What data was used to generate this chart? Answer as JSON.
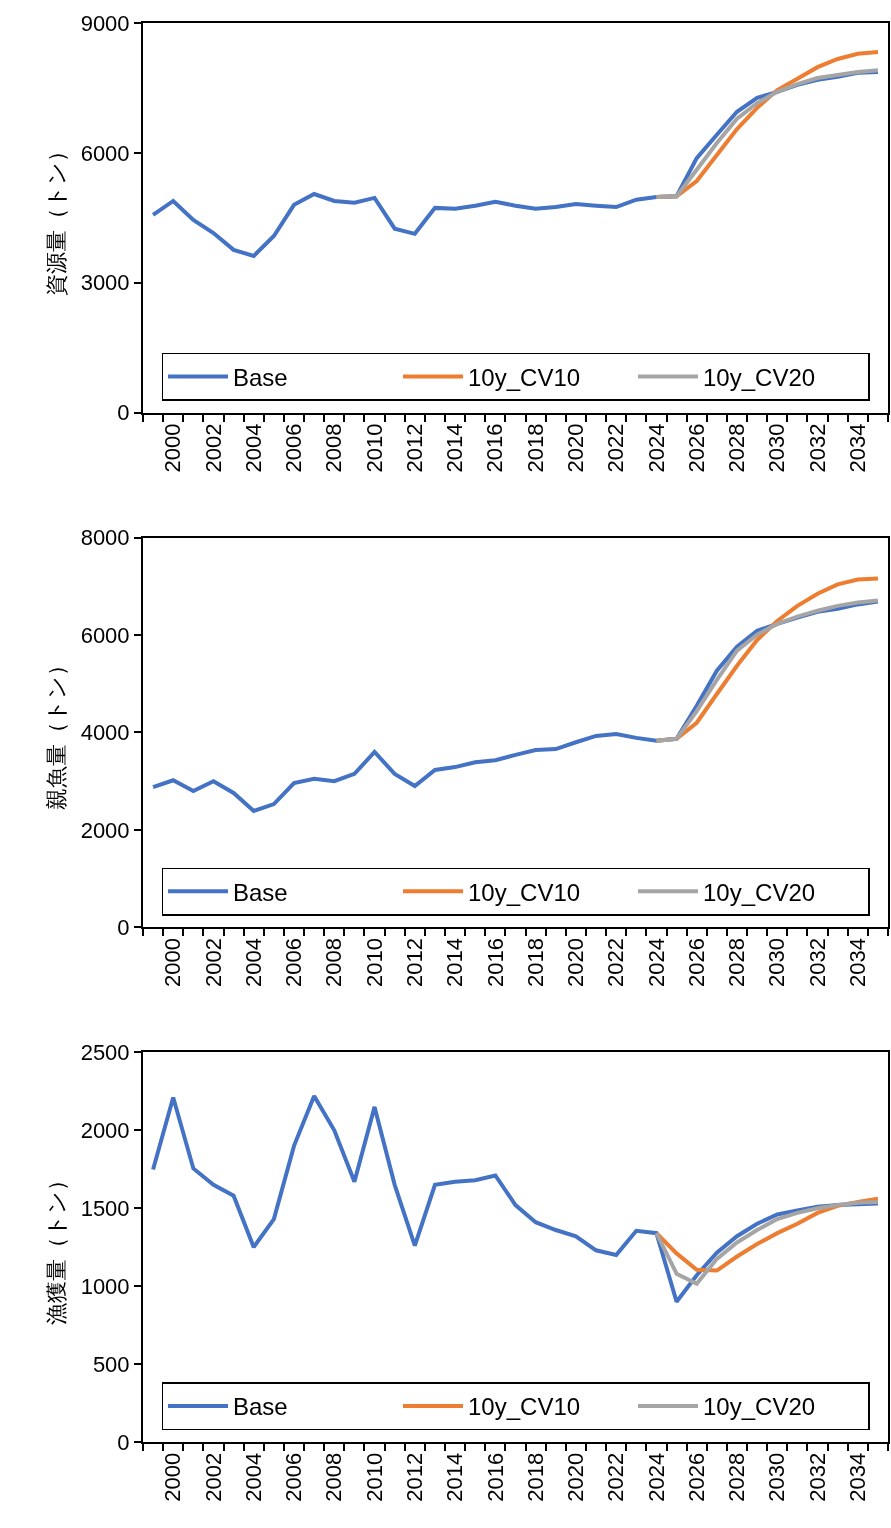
{
  "chart_data": [
    {
      "type": "line",
      "ylabel": "資源量（トン）",
      "ylim": [
        0,
        9000
      ],
      "yticks": [
        0,
        3000,
        6000,
        9000
      ],
      "legend": "bottom",
      "line_style": "solid",
      "categories": [
        null,
        "2000",
        null,
        "2002",
        null,
        "2004",
        null,
        "2006",
        null,
        "2008",
        null,
        "2010",
        null,
        "2012",
        null,
        "2014",
        null,
        "2016",
        null,
        "2018",
        null,
        "2020",
        null,
        "2022",
        null,
        "2024",
        null,
        "2026",
        null,
        "2028",
        null,
        "2030",
        null,
        "2032",
        null,
        "2034",
        null
      ],
      "series": [
        {
          "name": "Base",
          "color": "#4472c4",
          "values": [
            4570,
            4890,
            4450,
            4150,
            3760,
            3620,
            4080,
            4800,
            5050,
            4890,
            4850,
            4960,
            4250,
            4130,
            4730,
            4710,
            4780,
            4870,
            4780,
            4710,
            4750,
            4820,
            4780,
            4750,
            4920,
            4980,
            5000,
            5880,
            6420,
            6950,
            7270,
            7410,
            7570,
            7690,
            7760,
            7850,
            7870
          ]
        },
        {
          "name": "10y_CV10",
          "color": "#ed7d31",
          "values": [
            null,
            null,
            null,
            null,
            null,
            null,
            null,
            null,
            null,
            null,
            null,
            null,
            null,
            null,
            null,
            null,
            null,
            null,
            null,
            null,
            null,
            null,
            null,
            null,
            null,
            4980,
            5000,
            5350,
            5950,
            6550,
            7040,
            7450,
            7710,
            7980,
            8170,
            8290,
            8330
          ]
        },
        {
          "name": "10y_CV20",
          "color": "#a5a5a5",
          "values": [
            null,
            null,
            null,
            null,
            null,
            null,
            null,
            null,
            null,
            null,
            null,
            null,
            null,
            null,
            null,
            null,
            null,
            null,
            null,
            null,
            null,
            null,
            null,
            null,
            null,
            4980,
            5000,
            5610,
            6230,
            6790,
            7150,
            7410,
            7590,
            7730,
            7800,
            7870,
            7910
          ]
        }
      ]
    },
    {
      "type": "line",
      "ylabel": "親魚量（トン）",
      "ylim": [
        0,
        8000
      ],
      "yticks": [
        0,
        2000,
        4000,
        6000,
        8000
      ],
      "legend": "bottom",
      "line_style": "solid",
      "categories": [
        null,
        "2000",
        null,
        "2002",
        null,
        "2004",
        null,
        "2006",
        null,
        "2008",
        null,
        "2010",
        null,
        "2012",
        null,
        "2014",
        null,
        "2016",
        null,
        "2018",
        null,
        "2020",
        null,
        "2022",
        null,
        "2024",
        null,
        "2026",
        null,
        "2028",
        null,
        "2030",
        null,
        "2032",
        null,
        "2034",
        null
      ],
      "series": [
        {
          "name": "Base",
          "color": "#4472c4",
          "values": [
            2880,
            3020,
            2800,
            3000,
            2760,
            2390,
            2530,
            2960,
            3050,
            3000,
            3150,
            3600,
            3150,
            2900,
            3230,
            3290,
            3390,
            3430,
            3540,
            3640,
            3660,
            3800,
            3930,
            3970,
            3890,
            3830,
            3870,
            4550,
            5270,
            5760,
            6090,
            6230,
            6360,
            6480,
            6540,
            6630,
            6690
          ]
        },
        {
          "name": "10y_CV10",
          "color": "#ed7d31",
          "values": [
            null,
            null,
            null,
            null,
            null,
            null,
            null,
            null,
            null,
            null,
            null,
            null,
            null,
            null,
            null,
            null,
            null,
            null,
            null,
            null,
            null,
            null,
            null,
            null,
            null,
            3830,
            3870,
            4200,
            4790,
            5370,
            5900,
            6290,
            6600,
            6850,
            7040,
            7140,
            7160
          ]
        },
        {
          "name": "10y_CV20",
          "color": "#a5a5a5",
          "values": [
            null,
            null,
            null,
            null,
            null,
            null,
            null,
            null,
            null,
            null,
            null,
            null,
            null,
            null,
            null,
            null,
            null,
            null,
            null,
            null,
            null,
            null,
            null,
            null,
            null,
            3830,
            3870,
            4440,
            5080,
            5680,
            6010,
            6230,
            6380,
            6500,
            6600,
            6670,
            6710
          ]
        }
      ]
    },
    {
      "type": "line",
      "ylabel": "漁獲量（トン）",
      "ylim": [
        0,
        2500
      ],
      "yticks": [
        0,
        500,
        1000,
        1500,
        2000,
        2500
      ],
      "legend": "bottom",
      "line_style": "solid",
      "categories": [
        null,
        "2000",
        null,
        "2002",
        null,
        "2004",
        null,
        "2006",
        null,
        "2008",
        null,
        "2010",
        null,
        "2012",
        null,
        "2014",
        null,
        "2016",
        null,
        "2018",
        null,
        "2020",
        null,
        "2022",
        null,
        "2024",
        null,
        "2026",
        null,
        "2028",
        null,
        "2030",
        null,
        "2032",
        null,
        "2034",
        null
      ],
      "series": [
        {
          "name": "Base",
          "color": "#4472c4",
          "values": [
            1748,
            2210,
            1755,
            1650,
            1580,
            1250,
            1430,
            1900,
            2220,
            2000,
            1670,
            2150,
            1650,
            1260,
            1650,
            1670,
            1680,
            1710,
            1520,
            1410,
            1360,
            1320,
            1230,
            1200,
            1355,
            1340,
            900,
            1070,
            1215,
            1320,
            1400,
            1460,
            1485,
            1510,
            1520,
            1525,
            1530
          ]
        },
        {
          "name": "10y_CV10",
          "color": "#ed7d31",
          "values": [
            null,
            null,
            null,
            null,
            null,
            null,
            null,
            null,
            null,
            null,
            null,
            null,
            null,
            null,
            null,
            null,
            null,
            null,
            null,
            null,
            null,
            null,
            null,
            null,
            null,
            1340,
            1210,
            1105,
            1100,
            1190,
            1270,
            1340,
            1400,
            1470,
            1515,
            1540,
            1560
          ]
        },
        {
          "name": "10y_CV20",
          "color": "#a5a5a5",
          "values": [
            null,
            null,
            null,
            null,
            null,
            null,
            null,
            null,
            null,
            null,
            null,
            null,
            null,
            null,
            null,
            null,
            null,
            null,
            null,
            null,
            null,
            null,
            null,
            null,
            null,
            1340,
            1080,
            1015,
            1175,
            1280,
            1360,
            1430,
            1470,
            1500,
            1520,
            1535,
            1540
          ]
        }
      ]
    }
  ]
}
